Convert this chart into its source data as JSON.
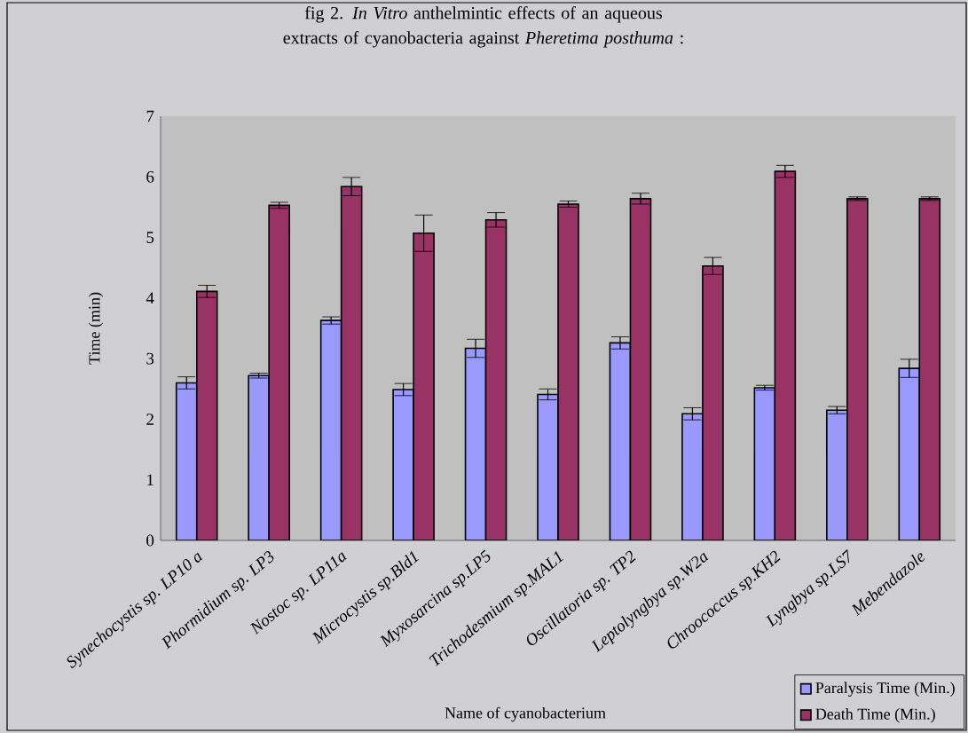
{
  "chart_data": {
    "type": "bar",
    "title": "fig 2. *In Vitro*  anthelmintic effects of an aqueous extracts of cyanobacteria against *Pheretima posthuma* :",
    "xlabel": "Name of cyanobacterium",
    "ylabel": "Time (min)",
    "categories": [
      "Synechocystis sp. LP10 a",
      "Phormidium sp. LP3",
      "Nostoc sp. LP11a",
      "Microcystis sp.Bld1",
      "Myxosarcina sp.LP5",
      "Trichodesmium sp.MAL1",
      "Oscillatoria sp. TP2",
      "Leptolyngbya sp.W2a",
      "Chroococcus sp.KH2",
      "Lyngbya sp.LS7",
      "Mebendazole"
    ],
    "series": [
      {
        "name": "Paralysis Time (Min.)",
        "color": "#9999ff",
        "values": [
          2.6,
          2.72,
          3.63,
          2.49,
          3.17,
          2.41,
          3.26,
          2.09,
          2.52,
          2.15,
          2.84
        ],
        "errors": [
          0.1,
          0.04,
          0.06,
          0.1,
          0.15,
          0.09,
          0.1,
          0.1,
          0.04,
          0.06,
          0.15
        ]
      },
      {
        "name": "Death Time (Min.)",
        "color": "#993366",
        "values": [
          4.11,
          5.53,
          5.84,
          5.07,
          5.29,
          5.55,
          5.64,
          4.53,
          6.09,
          5.64,
          5.64
        ],
        "errors": [
          0.1,
          0.05,
          0.15,
          0.3,
          0.12,
          0.05,
          0.09,
          0.14,
          0.1,
          0.03,
          0.03
        ]
      }
    ],
    "ylim": [
      0,
      7
    ],
    "yticks": [
      0,
      1,
      2,
      3,
      4,
      5,
      6,
      7
    ],
    "grid": false,
    "legend": "bottom right"
  }
}
